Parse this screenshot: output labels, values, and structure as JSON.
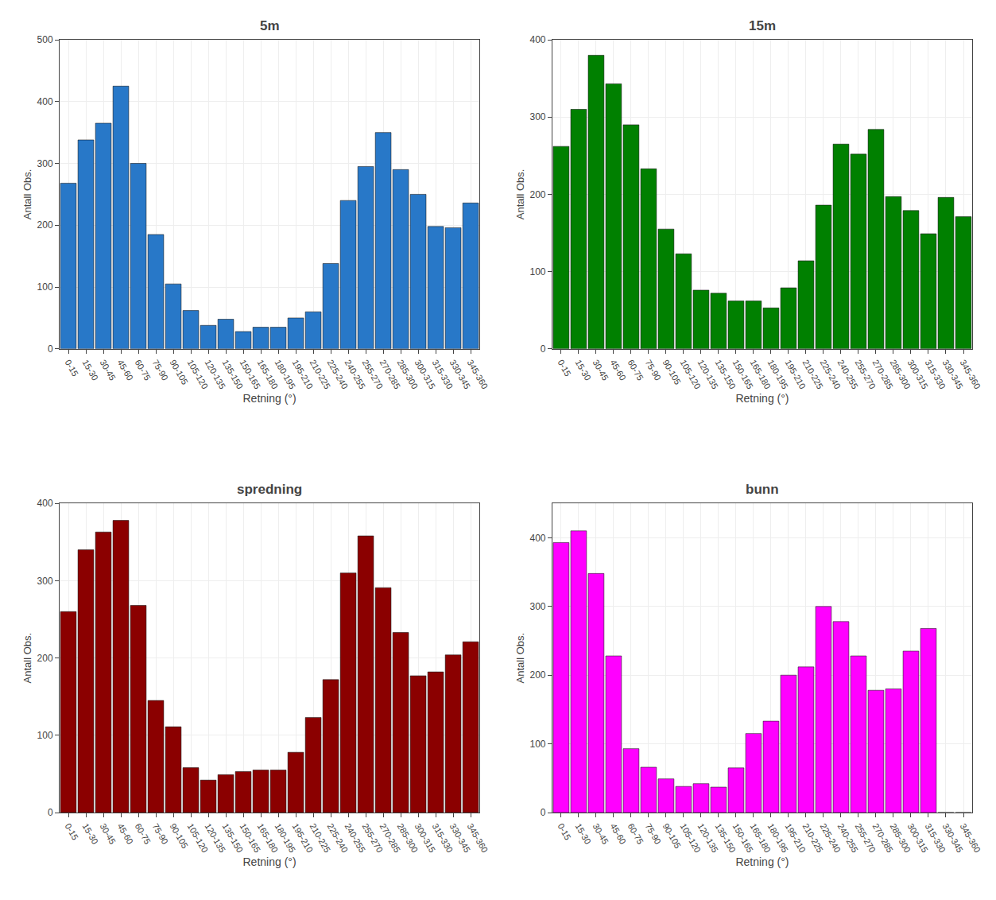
{
  "chart_data": [
    {
      "type": "bar",
      "title": "5m",
      "xlabel": "Retning (°)",
      "ylabel": "Antall Obs.",
      "categories": [
        "0-15",
        "15-30",
        "30-45",
        "45-60",
        "60-75",
        "75-90",
        "90-105",
        "105-120",
        "120-135",
        "135-150",
        "150-165",
        "165-180",
        "180-195",
        "195-210",
        "210-225",
        "225-240",
        "240-255",
        "255-270",
        "270-285",
        "285-300",
        "300-315",
        "315-330",
        "330-345",
        "345-360"
      ],
      "values": [
        268,
        338,
        365,
        425,
        300,
        185,
        105,
        62,
        38,
        48,
        28,
        35,
        35,
        50,
        60,
        138,
        240,
        295,
        350,
        290,
        250,
        198,
        196,
        236
      ],
      "color": "#2878c8",
      "ylim": [
        0,
        500
      ],
      "yticks": [
        0,
        100,
        200,
        300,
        400,
        500
      ],
      "grid": true
    },
    {
      "type": "bar",
      "title": "15m",
      "xlabel": "Retning (°)",
      "ylabel": "Antall Obs.",
      "categories": [
        "0-15",
        "15-30",
        "30-45",
        "45-60",
        "60-75",
        "75-90",
        "90-105",
        "105-120",
        "120-135",
        "135-150",
        "150-165",
        "165-180",
        "180-195",
        "195-210",
        "210-225",
        "225-240",
        "240-255",
        "255-270",
        "270-285",
        "285-300",
        "300-315",
        "315-330",
        "330-345",
        "345-360"
      ],
      "values": [
        262,
        310,
        380,
        343,
        290,
        233,
        155,
        123,
        76,
        72,
        62,
        62,
        53,
        79,
        114,
        186,
        265,
        252,
        284,
        197,
        179,
        149,
        196,
        171
      ],
      "color": "#008000",
      "ylim": [
        0,
        400
      ],
      "yticks": [
        0,
        100,
        200,
        300,
        400
      ],
      "grid": true
    },
    {
      "type": "bar",
      "title": "spredning",
      "xlabel": "Retning (°)",
      "ylabel": "Antall Obs.",
      "categories": [
        "0-15",
        "15-30",
        "30-45",
        "45-60",
        "60-75",
        "75-90",
        "90-105",
        "105-120",
        "120-135",
        "135-150",
        "150-165",
        "165-180",
        "180-195",
        "195-210",
        "210-225",
        "225-240",
        "240-255",
        "255-270",
        "270-285",
        "285-300",
        "300-315",
        "315-330",
        "330-345",
        "345-360"
      ],
      "values": [
        260,
        340,
        363,
        378,
        268,
        145,
        111,
        58,
        42,
        49,
        53,
        55,
        55,
        78,
        123,
        172,
        310,
        358,
        291,
        233,
        177,
        182,
        204,
        221
      ],
      "color": "#8b0000",
      "ylim": [
        0,
        400
      ],
      "yticks": [
        0,
        100,
        200,
        300,
        400
      ],
      "grid": true
    },
    {
      "type": "bar",
      "title": "bunn",
      "xlabel": "Retning (°)",
      "ylabel": "Antall Obs.",
      "categories": [
        "0-15",
        "15-30",
        "30-45",
        "45-60",
        "60-75",
        "75-90",
        "90-105",
        "105-120",
        "120-135",
        "135-150",
        "150-165",
        "165-180",
        "180-195",
        "195-210",
        "210-225",
        "225-240",
        "240-255",
        "255-270",
        "270-285",
        "285-300",
        "300-315",
        "315-330",
        "330-345",
        "345-360"
      ],
      "values": [
        393,
        410,
        348,
        228,
        93,
        66,
        49,
        38,
        42,
        37,
        65,
        115,
        133,
        200,
        212,
        300,
        278,
        228,
        178,
        180,
        235,
        268,
        0,
        0
      ],
      "color": "#ff00ff",
      "ylim": [
        0,
        450
      ],
      "yticks": [
        0,
        100,
        200,
        300,
        400
      ],
      "grid": true
    }
  ]
}
